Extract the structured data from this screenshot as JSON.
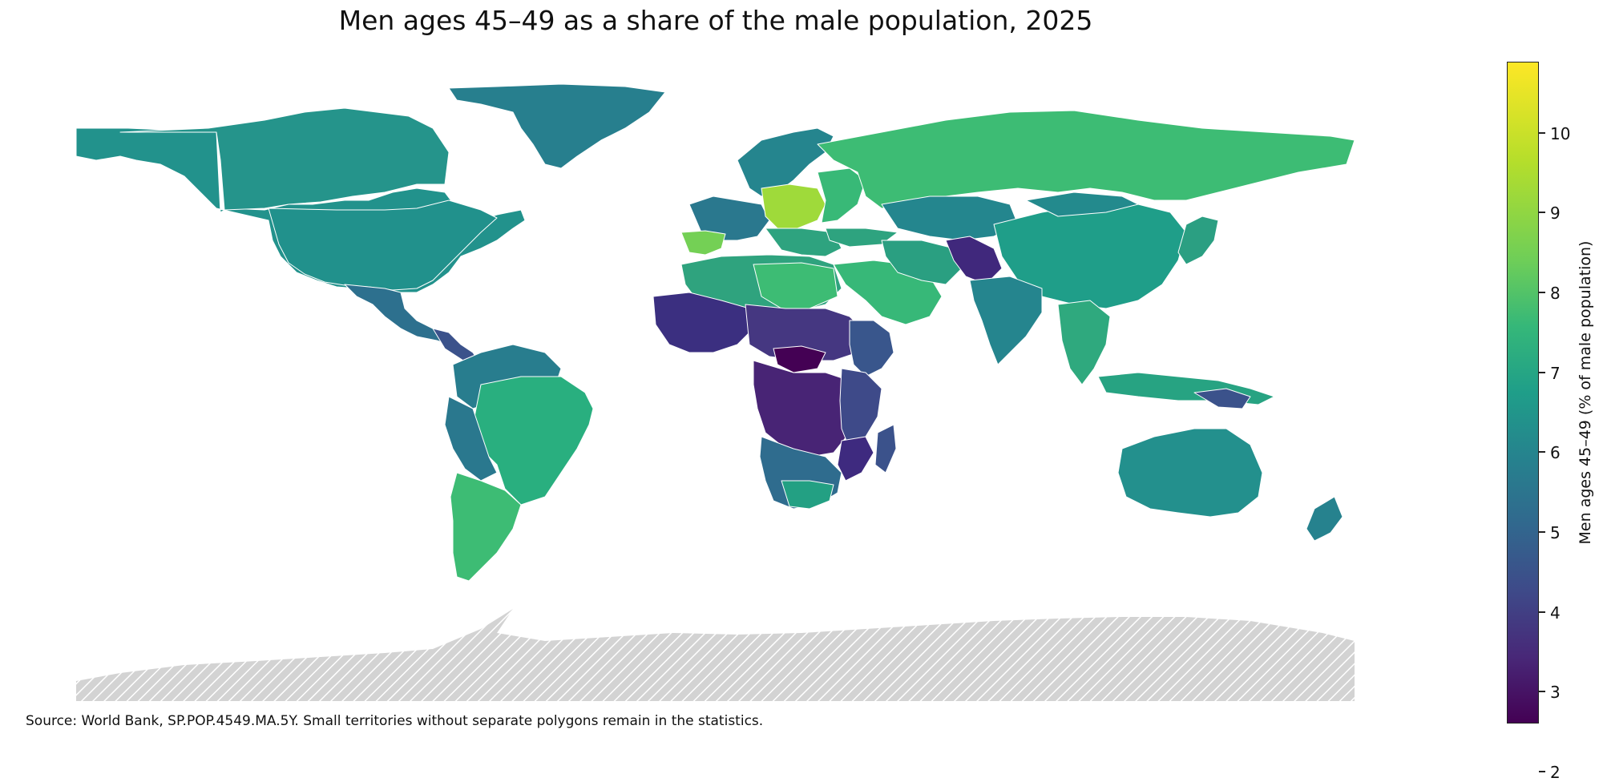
{
  "title": "Men ages 45–49 as a share of the male population, 2025",
  "source_note": "Source: World Bank, SP.POP.4549.MA.5Y. Small territories without separate polygons remain in the statistics.",
  "colorbar": {
    "label": "Men ages 45–49 (% of male population)",
    "min": 1.8,
    "max": 10.2,
    "colormap": "viridis",
    "ticks": [
      "2",
      "3",
      "4",
      "5",
      "6",
      "7",
      "8",
      "9",
      "10"
    ]
  },
  "no_data_style": {
    "fill": "#d3d3d3",
    "pattern": "diagonal-hatch",
    "region": "Antarctica"
  },
  "regions": [
    {
      "name": "North America (USA/Canada)",
      "value": 6.1
    },
    {
      "name": "Greenland",
      "value": 5.6
    },
    {
      "name": "Mexico / Central America",
      "value": 5.3
    },
    {
      "name": "Brazil",
      "value": 7.0
    },
    {
      "name": "Argentina / Chile",
      "value": 7.0
    },
    {
      "name": "Russia",
      "value": 7.3
    },
    {
      "name": "Europe (central)",
      "value": 8.4
    },
    {
      "name": "Spain",
      "value": 8.2
    },
    {
      "name": "China",
      "value": 6.7
    },
    {
      "name": "India",
      "value": 6.1
    },
    {
      "name": "Saudi Arabia",
      "value": 7.2
    },
    {
      "name": "Sahel Africa",
      "value": 3.6
    },
    {
      "name": "Central Africa",
      "value": 3.2
    },
    {
      "name": "Central African Republic",
      "value": 1.9
    },
    {
      "name": "Southern Africa",
      "value": 5.6
    },
    {
      "name": "Australia",
      "value": 6.3
    },
    {
      "name": "Southeast Asia",
      "value": 6.5
    }
  ]
}
